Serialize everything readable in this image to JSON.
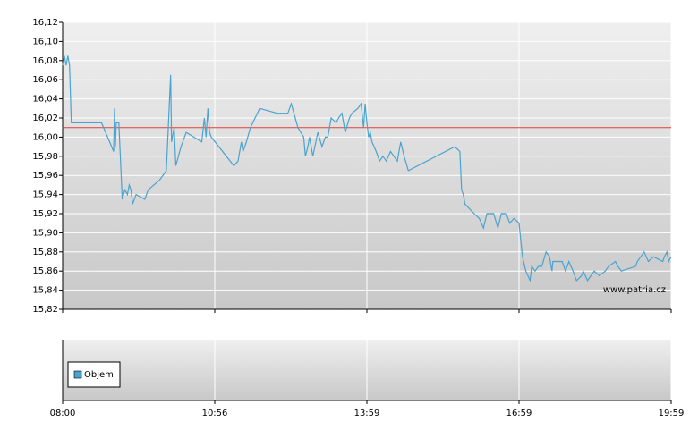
{
  "chart_data": [
    {
      "type": "line",
      "x": [
        0,
        2,
        4,
        6,
        8,
        10,
        45,
        59,
        60,
        61,
        62,
        65,
        69,
        72,
        75,
        77,
        79,
        81,
        85,
        95,
        99,
        112,
        120,
        125,
        126,
        129,
        131,
        134,
        137,
        143,
        161,
        164,
        166,
        168,
        170,
        172,
        199,
        204,
        208,
        210,
        214,
        219,
        230,
        251,
        264,
        268,
        276,
        283,
        285,
        288,
        290,
        294,
        300,
        305,
        309,
        312,
        316,
        322,
        325,
        329,
        333,
        338,
        341,
        348,
        352,
        355,
        357,
        359,
        361,
        363,
        365,
        370,
        374,
        378,
        382,
        387,
        395,
        399,
        403,
        408,
        463,
        469,
        471,
        473,
        475,
        486,
        492,
        497,
        501,
        509,
        514,
        518,
        524,
        528,
        533,
        539,
        543,
        547,
        552,
        554,
        558,
        562,
        566,
        571,
        575,
        578,
        579,
        590,
        594,
        598,
        603,
        607,
        613,
        615,
        620,
        628,
        634,
        641,
        645,
        653,
        656,
        660,
        677,
        679,
        683,
        687,
        692,
        698,
        709,
        711,
        714,
        716,
        719
      ],
      "series": [
        {
          "color": "#4aa3cf",
          "values": [
            16.075,
            16.085,
            16.075,
            16.085,
            16.075,
            16.015,
            16.015,
            15.985,
            16.03,
            15.99,
            16.015,
            16.015,
            15.935,
            15.945,
            15.94,
            15.95,
            15.945,
            15.93,
            15.94,
            15.935,
            15.945,
            15.955,
            15.965,
            16.065,
            15.995,
            16.01,
            15.97,
            15.98,
            15.99,
            16.005,
            15.995,
            16.02,
            16.0,
            16.03,
            16.005,
            16.0,
            15.97,
            15.975,
            15.995,
            15.985,
            15.995,
            16.01,
            16.03,
            16.025,
            16.025,
            16.035,
            16.01,
            16.0,
            15.98,
            15.99,
            16.0,
            15.98,
            16.005,
            15.99,
            16.0,
            16.0,
            16.02,
            16.015,
            16.02,
            16.025,
            16.005,
            16.02,
            16.025,
            16.03,
            16.035,
            16.01,
            16.035,
            16.015,
            16.0,
            16.005,
            15.995,
            15.985,
            15.975,
            15.98,
            15.975,
            15.985,
            15.975,
            15.995,
            15.98,
            15.965,
            15.99,
            15.985,
            15.945,
            15.94,
            15.93,
            15.92,
            15.915,
            15.905,
            15.92,
            15.92,
            15.905,
            15.92,
            15.92,
            15.91,
            15.915,
            15.91,
            15.875,
            15.86,
            15.85,
            15.865,
            15.86,
            15.865,
            15.865,
            15.88,
            15.875,
            15.86,
            15.87,
            15.87,
            15.86,
            15.87,
            15.86,
            15.85,
            15.855,
            15.86,
            15.85,
            15.86,
            15.855,
            15.86,
            15.865,
            15.87,
            15.865,
            15.86,
            15.865,
            15.87,
            15.875,
            15.88,
            15.87,
            15.875,
            15.87,
            15.875,
            15.88,
            15.87,
            15.875
          ]
        }
      ],
      "reference_line": {
        "value": 16.01,
        "color": "#e0403a"
      },
      "xlim": [
        0,
        719
      ],
      "xticks": [
        {
          "value": 0,
          "label": "08:00"
        },
        {
          "value": 176,
          "label": "10:56"
        },
        {
          "value": 359,
          "label": "13:59"
        },
        {
          "value": 539,
          "label": "16:59"
        },
        {
          "value": 719,
          "label": "19:59"
        }
      ],
      "ylim": [
        15.82,
        16.12
      ],
      "yticks": [
        {
          "value": 15.82,
          "label": "15,82"
        },
        {
          "value": 15.84,
          "label": "15,84"
        },
        {
          "value": 15.86,
          "label": "15,86"
        },
        {
          "value": 15.88,
          "label": "15,88"
        },
        {
          "value": 15.9,
          "label": "15,90"
        },
        {
          "value": 15.92,
          "label": "15,92"
        },
        {
          "value": 15.94,
          "label": "15,94"
        },
        {
          "value": 15.96,
          "label": "15,96"
        },
        {
          "value": 15.98,
          "label": "15,98"
        },
        {
          "value": 16.0,
          "label": "16,00"
        },
        {
          "value": 16.02,
          "label": "16,02"
        },
        {
          "value": 16.04,
          "label": "16,04"
        },
        {
          "value": 16.06,
          "label": "16,06"
        },
        {
          "value": 16.08,
          "label": "16,08"
        },
        {
          "value": 16.1,
          "label": "16,10"
        },
        {
          "value": 16.12,
          "label": "16,12"
        }
      ],
      "grid": true,
      "watermark": "www.patria.cz"
    },
    {
      "type": "bar",
      "series": [
        {
          "name": "Objem",
          "color": "#4aa3cf",
          "values": []
        }
      ],
      "legend": "lower-left"
    }
  ]
}
